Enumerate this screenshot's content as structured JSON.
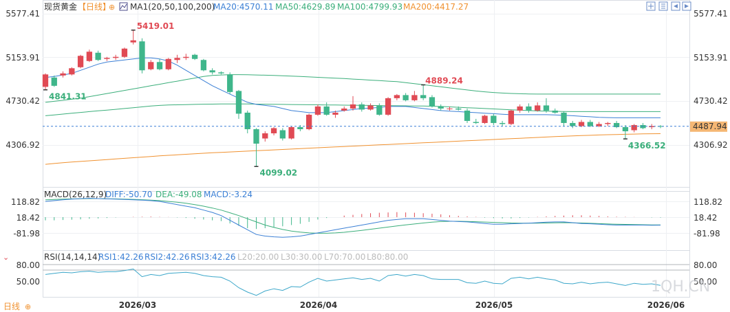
{
  "header": {
    "instrument": "现货黄金",
    "period_tag": "【日线】",
    "ma_label": "MA1(20,50,100,200)",
    "ma_values": [
      {
        "text": "MA20:4570.11",
        "color": "#3a7fd5"
      },
      {
        "text": "MA50:4629.89",
        "color": "#3aae7a"
      },
      {
        "text": "MA100:4799.93",
        "color": "#3aae7a"
      },
      {
        "text": "MA200:4417.27",
        "color": "#f0912f"
      }
    ],
    "toolbar_icons": [
      "expand-icon",
      "grid-icon",
      "arrow-left-icon",
      "arrow-right-icon"
    ]
  },
  "price_axis": {
    "ticks": [
      "5577.41",
      "5153.91",
      "4730.42",
      "4306.92"
    ],
    "current_price": "4487.94",
    "ylim": [
      4050,
      5600
    ]
  },
  "annotations": {
    "high": "5419.01",
    "start_low": "4841.31",
    "mid_high": "4889.24",
    "low": "4099.02",
    "recent_low": "4366.52"
  },
  "macd": {
    "label": "MACD(26,12,9)",
    "diff": "DIFF:-50.70",
    "dea": "DEA:-49.08",
    "macd": "MACD:-3.24",
    "ticks": [
      "118.82",
      "18.42",
      "-81.98"
    ]
  },
  "rsi": {
    "label": "RSI(14,14,14)",
    "rsi1": "RSI1:42.26",
    "rsi2": "RSI2:42.26",
    "rsi3": "RSI3:42.26",
    "levels": [
      "L20:20.00",
      "L30:30.00",
      "L70:70.00",
      "L80:80.00"
    ],
    "ticks": [
      "80.00",
      "50.00"
    ]
  },
  "footer": {
    "period_button": "日线",
    "dates": [
      "2026/03",
      "2026/04",
      "2026/05",
      "2026/06"
    ],
    "watermark": "1QH.CN"
  },
  "colors": {
    "up": "#e04a54",
    "down": "#3fb68b",
    "ma20": "#3a7fd5",
    "ma50": "#3aae7a",
    "ma100": "#3aae7a",
    "ma200": "#f0912f"
  },
  "chart_data": {
    "type": "candlestick",
    "ylim": [
      4050,
      5600
    ],
    "candles": [
      {
        "o": 4870,
        "c": 4990,
        "h": 5000,
        "l": 4841
      },
      {
        "o": 4960,
        "c": 4880,
        "h": 4980,
        "l": 4870
      },
      {
        "o": 4980,
        "c": 5000,
        "h": 5020,
        "l": 4960
      },
      {
        "o": 4990,
        "c": 5050,
        "h": 5060,
        "l": 4980
      },
      {
        "o": 5060,
        "c": 5170,
        "h": 5180,
        "l": 5050
      },
      {
        "o": 5120,
        "c": 5210,
        "h": 5230,
        "l": 5110
      },
      {
        "o": 5200,
        "c": 5130,
        "h": 5220,
        "l": 5120
      },
      {
        "o": 5140,
        "c": 5150,
        "h": 5160,
        "l": 5120
      },
      {
        "o": 5150,
        "c": 5160,
        "h": 5180,
        "l": 5130
      },
      {
        "o": 5160,
        "c": 5240,
        "h": 5250,
        "l": 5150
      },
      {
        "o": 5300,
        "c": 5320,
        "h": 5419,
        "l": 5280
      },
      {
        "o": 5310,
        "c": 5030,
        "h": 5340,
        "l": 5000
      },
      {
        "o": 5040,
        "c": 5110,
        "h": 5130,
        "l": 5030
      },
      {
        "o": 5110,
        "c": 5040,
        "h": 5140,
        "l": 5030
      },
      {
        "o": 5040,
        "c": 5140,
        "h": 5150,
        "l": 5030
      },
      {
        "o": 5130,
        "c": 5150,
        "h": 5180,
        "l": 5100
      },
      {
        "o": 5150,
        "c": 5160,
        "h": 5190,
        "l": 5130
      },
      {
        "o": 5180,
        "c": 5140,
        "h": 5190,
        "l": 5130
      },
      {
        "o": 5130,
        "c": 5030,
        "h": 5140,
        "l": 5020
      },
      {
        "o": 5030,
        "c": 5010,
        "h": 5050,
        "l": 4990
      },
      {
        "o": 5010,
        "c": 5000,
        "h": 5020,
        "l": 4990
      },
      {
        "o": 4990,
        "c": 4820,
        "h": 5010,
        "l": 4800
      },
      {
        "o": 4830,
        "c": 4610,
        "h": 4840,
        "l": 4560
      },
      {
        "o": 4620,
        "c": 4460,
        "h": 4640,
        "l": 4420
      },
      {
        "o": 4460,
        "c": 4320,
        "h": 4470,
        "l": 4099
      },
      {
        "o": 4370,
        "c": 4420,
        "h": 4440,
        "l": 4340
      },
      {
        "o": 4420,
        "c": 4470,
        "h": 4480,
        "l": 4400
      },
      {
        "o": 4450,
        "c": 4370,
        "h": 4470,
        "l": 4350
      },
      {
        "o": 4370,
        "c": 4480,
        "h": 4490,
        "l": 4360
      },
      {
        "o": 4480,
        "c": 4460,
        "h": 4500,
        "l": 4440
      },
      {
        "o": 4460,
        "c": 4600,
        "h": 4610,
        "l": 4450
      },
      {
        "o": 4600,
        "c": 4680,
        "h": 4700,
        "l": 4590
      },
      {
        "o": 4680,
        "c": 4600,
        "h": 4720,
        "l": 4590
      },
      {
        "o": 4600,
        "c": 4620,
        "h": 4640,
        "l": 4570
      },
      {
        "o": 4640,
        "c": 4660,
        "h": 4680,
        "l": 4630
      },
      {
        "o": 4660,
        "c": 4700,
        "h": 4780,
        "l": 4640
      },
      {
        "o": 4700,
        "c": 4650,
        "h": 4720,
        "l": 4630
      },
      {
        "o": 4650,
        "c": 4690,
        "h": 4710,
        "l": 4640
      },
      {
        "o": 4690,
        "c": 4600,
        "h": 4710,
        "l": 4590
      },
      {
        "o": 4600,
        "c": 4760,
        "h": 4770,
        "l": 4590
      },
      {
        "o": 4760,
        "c": 4790,
        "h": 4800,
        "l": 4740
      },
      {
        "o": 4790,
        "c": 4740,
        "h": 4810,
        "l": 4730
      },
      {
        "o": 4740,
        "c": 4790,
        "h": 4830,
        "l": 4730
      },
      {
        "o": 4790,
        "c": 4760,
        "h": 4889,
        "l": 4740
      },
      {
        "o": 4770,
        "c": 4680,
        "h": 4790,
        "l": 4670
      },
      {
        "o": 4680,
        "c": 4660,
        "h": 4700,
        "l": 4640
      },
      {
        "o": 4660,
        "c": 4660,
        "h": 4680,
        "l": 4640
      },
      {
        "o": 4660,
        "c": 4650,
        "h": 4680,
        "l": 4640
      },
      {
        "o": 4640,
        "c": 4540,
        "h": 4660,
        "l": 4520
      },
      {
        "o": 4530,
        "c": 4520,
        "h": 4560,
        "l": 4510
      },
      {
        "o": 4520,
        "c": 4590,
        "h": 4600,
        "l": 4510
      },
      {
        "o": 4590,
        "c": 4520,
        "h": 4610,
        "l": 4500
      },
      {
        "o": 4520,
        "c": 4510,
        "h": 4540,
        "l": 4490
      },
      {
        "o": 4510,
        "c": 4640,
        "h": 4650,
        "l": 4500
      },
      {
        "o": 4640,
        "c": 4680,
        "h": 4700,
        "l": 4620
      },
      {
        "o": 4680,
        "c": 4640,
        "h": 4710,
        "l": 4620
      },
      {
        "o": 4640,
        "c": 4690,
        "h": 4720,
        "l": 4630
      },
      {
        "o": 4690,
        "c": 4640,
        "h": 4760,
        "l": 4620
      },
      {
        "o": 4640,
        "c": 4620,
        "h": 4660,
        "l": 4610
      },
      {
        "o": 4620,
        "c": 4520,
        "h": 4630,
        "l": 4490
      },
      {
        "o": 4520,
        "c": 4490,
        "h": 4540,
        "l": 4470
      },
      {
        "o": 4490,
        "c": 4530,
        "h": 4550,
        "l": 4480
      },
      {
        "o": 4530,
        "c": 4490,
        "h": 4550,
        "l": 4480
      },
      {
        "o": 4490,
        "c": 4510,
        "h": 4530,
        "l": 4480
      },
      {
        "o": 4510,
        "c": 4520,
        "h": 4530,
        "l": 4490
      },
      {
        "o": 4520,
        "c": 4480,
        "h": 4540,
        "l": 4470
      },
      {
        "o": 4480,
        "c": 4440,
        "h": 4500,
        "l": 4366
      },
      {
        "o": 4450,
        "c": 4500,
        "h": 4510,
        "l": 4430
      },
      {
        "o": 4500,
        "c": 4470,
        "h": 4520,
        "l": 4460
      },
      {
        "o": 4480,
        "c": 4490,
        "h": 4510,
        "l": 4460
      },
      {
        "o": 4490,
        "c": 4488,
        "h": 4500,
        "l": 4470
      }
    ],
    "ma20": [
      4960,
      4970,
      4985,
      5000,
      5030,
      5060,
      5090,
      5110,
      5120,
      5130,
      5140,
      5150,
      5150,
      5140,
      5120,
      5080,
      5030,
      4980,
      4930,
      4880,
      4840,
      4800,
      4760,
      4720,
      4700,
      4690,
      4680,
      4660,
      4640,
      4630,
      4620,
      4620,
      4620,
      4630,
      4640,
      4650,
      4660,
      4665,
      4670,
      4680,
      4680,
      4680,
      4670,
      4660,
      4650,
      4640,
      4635,
      4630,
      4625,
      4620,
      4615,
      4610,
      4605,
      4600,
      4600,
      4600,
      4600,
      4600,
      4598,
      4595,
      4590,
      4585,
      4580,
      4575,
      4572,
      4570,
      4570,
      4570,
      4570,
      4570,
      4570
    ],
    "ma50": [
      4590,
      4598,
      4606,
      4614,
      4622,
      4630,
      4638,
      4645,
      4652,
      4660,
      4668,
      4676,
      4684,
      4690,
      4694,
      4696,
      4698,
      4700,
      4702,
      4703,
      4704,
      4704,
      4704,
      4704,
      4703,
      4702,
      4701,
      4700,
      4699,
      4698,
      4697,
      4696,
      4695,
      4694,
      4693,
      4692,
      4691,
      4690,
      4689,
      4688,
      4687,
      4686,
      4685,
      4684,
      4682,
      4680,
      4676,
      4672,
      4668,
      4664,
      4660,
      4656,
      4652,
      4648,
      4644,
      4640,
      4637,
      4635,
      4633,
      4631,
      4630,
      4630,
      4630,
      4630,
      4630,
      4630,
      4630,
      4630,
      4630,
      4630,
      4630
    ],
    "ma100": [
      4720,
      4730,
      4740,
      4750,
      4760,
      4775,
      4790,
      4805,
      4820,
      4835,
      4850,
      4865,
      4880,
      4895,
      4910,
      4925,
      4940,
      4955,
      4970,
      4980,
      4985,
      4988,
      4988,
      4987,
      4985,
      4983,
      4980,
      4977,
      4974,
      4970,
      4966,
      4962,
      4958,
      4954,
      4950,
      4945,
      4940,
      4935,
      4930,
      4925,
      4920,
      4910,
      4900,
      4890,
      4880,
      4870,
      4860,
      4850,
      4840,
      4830,
      4822,
      4815,
      4810,
      4806,
      4803,
      4801,
      4800,
      4800,
      4800,
      4800,
      4800,
      4800,
      4800,
      4800,
      4800,
      4800,
      4800,
      4800,
      4800,
      4800,
      4800
    ],
    "ma200": [
      4120,
      4128,
      4135,
      4142,
      4148,
      4154,
      4160,
      4166,
      4172,
      4178,
      4184,
      4190,
      4196,
      4202,
      4207,
      4212,
      4217,
      4222,
      4227,
      4232,
      4236,
      4240,
      4244,
      4248,
      4252,
      4256,
      4260,
      4264,
      4268,
      4272,
      4276,
      4280,
      4284,
      4288,
      4292,
      4296,
      4300,
      4304,
      4308,
      4312,
      4316,
      4320,
      4324,
      4328,
      4332,
      4336,
      4340,
      4344,
      4348,
      4352,
      4356,
      4360,
      4364,
      4368,
      4372,
      4376,
      4380,
      4384,
      4388,
      4392,
      4395,
      4398,
      4401,
      4404,
      4407,
      4409,
      4411,
      4413,
      4415,
      4416,
      4417
    ],
    "macd_hist": [
      -20,
      -20,
      -18,
      -16,
      -14,
      -10,
      -8,
      -5,
      -2,
      0,
      2,
      3,
      4,
      2,
      1,
      -2,
      -5,
      -10,
      -15,
      -20,
      -25,
      -40,
      -55,
      -70,
      -75,
      -70,
      -65,
      -58,
      -50,
      -42,
      -30,
      -15,
      -5,
      0,
      10,
      15,
      20,
      25,
      28,
      30,
      32,
      30,
      28,
      25,
      22,
      18,
      12,
      8,
      5,
      2,
      -3,
      -6,
      -8,
      -8,
      -5,
      -2,
      2,
      5,
      8,
      10,
      12,
      12,
      10,
      8,
      5,
      3,
      2,
      1,
      0,
      -2,
      -3
    ],
    "macd_diff": [
      100,
      105,
      110,
      115,
      118,
      120,
      118,
      116,
      115,
      112,
      110,
      108,
      105,
      100,
      90,
      80,
      70,
      60,
      45,
      30,
      10,
      -20,
      -50,
      -80,
      -110,
      -120,
      -125,
      -128,
      -125,
      -120,
      -110,
      -100,
      -90,
      -80,
      -70,
      -60,
      -50,
      -40,
      -30,
      -20,
      -15,
      -10,
      -10,
      -10,
      -15,
      -20,
      -25,
      -28,
      -30,
      -35,
      -40,
      -45,
      -45,
      -42,
      -40,
      -38,
      -35,
      -32,
      -30,
      -30,
      -35,
      -40,
      -42,
      -45,
      -48,
      -50,
      -50,
      -50,
      -50,
      -51,
      -50.7
    ],
    "macd_dea": [
      110,
      112,
      115,
      116,
      117,
      118,
      118,
      117,
      116,
      115,
      113,
      111,
      108,
      105,
      100,
      95,
      88,
      80,
      70,
      58,
      45,
      28,
      10,
      -10,
      -30,
      -50,
      -65,
      -78,
      -88,
      -95,
      -100,
      -102,
      -102,
      -100,
      -96,
      -90,
      -84,
      -77,
      -70,
      -63,
      -56,
      -49,
      -43,
      -37,
      -32,
      -28,
      -26,
      -26,
      -27,
      -29,
      -31,
      -33,
      -35,
      -37,
      -38,
      -38,
      -38,
      -37,
      -36,
      -35,
      -36,
      -37,
      -39,
      -41,
      -43,
      -45,
      -46,
      -47,
      -48,
      -49,
      -49.08
    ],
    "rsi": [
      62,
      64,
      66,
      65,
      67,
      68,
      66,
      67,
      67,
      69,
      72,
      58,
      62,
      60,
      64,
      65,
      66,
      64,
      60,
      58,
      57,
      50,
      38,
      30,
      24,
      32,
      36,
      33,
      40,
      39,
      48,
      55,
      50,
      52,
      54,
      56,
      53,
      55,
      50,
      60,
      62,
      59,
      62,
      60,
      54,
      53,
      53,
      53,
      47,
      46,
      50,
      46,
      45,
      55,
      57,
      54,
      57,
      54,
      52,
      46,
      45,
      48,
      45,
      47,
      48,
      45,
      42,
      46,
      44,
      45,
      42.26
    ]
  }
}
